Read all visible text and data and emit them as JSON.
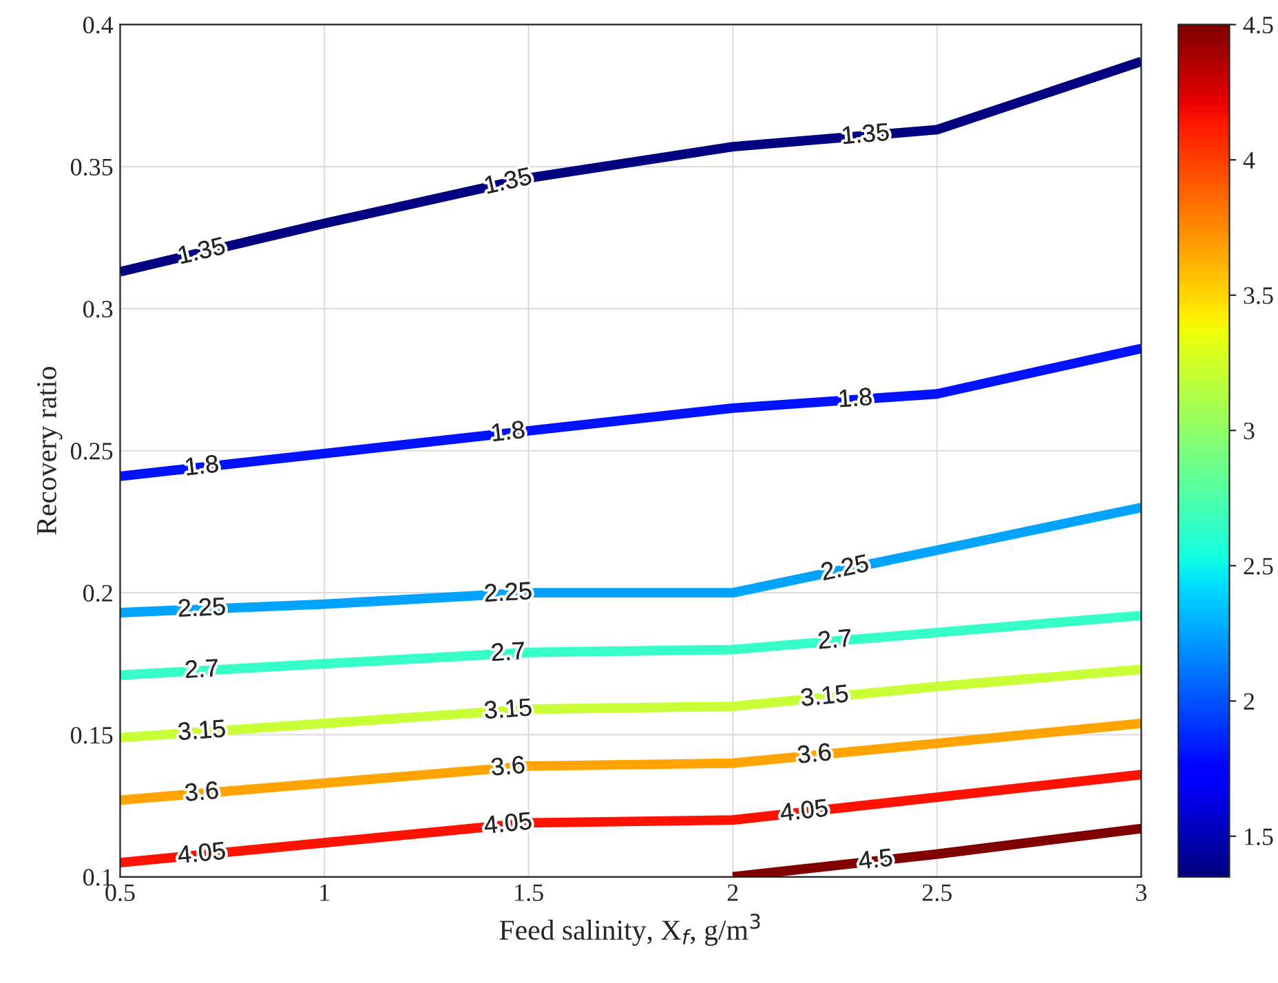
{
  "chart_data": {
    "type": "line",
    "xlabel": "Feed salinity, X$_{f}$, g/m$^{3}$",
    "ylabel": "Recovery ratio",
    "x": [
      0.5,
      1,
      1.5,
      2,
      2.5,
      3
    ],
    "series": [
      {
        "name": "1.35",
        "color": "#000080",
        "values": [
          0.313,
          0.33,
          0.346,
          0.357,
          0.363,
          0.387
        ]
      },
      {
        "name": "1.8",
        "color": "#0012ff",
        "values": [
          0.241,
          0.249,
          0.257,
          0.265,
          0.27,
          0.286
        ]
      },
      {
        "name": "2.25",
        "color": "#00a4ff",
        "values": [
          0.193,
          0.196,
          0.2,
          0.2,
          0.215,
          0.23
        ]
      },
      {
        "name": "2.7",
        "color": "#36ffc8",
        "values": [
          0.171,
          0.175,
          0.179,
          0.18,
          0.186,
          0.192
        ]
      },
      {
        "name": "3.15",
        "color": "#c8ff36",
        "values": [
          0.149,
          0.154,
          0.159,
          0.16,
          0.167,
          0.173
        ]
      },
      {
        "name": "3.6",
        "color": "#ffa400",
        "values": [
          0.127,
          0.133,
          0.139,
          0.14,
          0.147,
          0.154
        ]
      },
      {
        "name": "4.05",
        "color": "#ff1200",
        "values": [
          0.105,
          0.112,
          0.119,
          0.12,
          0.128,
          0.136
        ]
      },
      {
        "name": "4.5",
        "color": "#800000",
        "values": [
          null,
          null,
          null,
          0.1,
          0.108,
          0.117
        ]
      }
    ],
    "xlim": [
      0.5,
      3
    ],
    "xticks": [
      0.5,
      1,
      1.5,
      2,
      2.5,
      3
    ],
    "ylim": [
      0.1,
      0.4
    ],
    "yticks": [
      0.1,
      0.15,
      0.2,
      0.25,
      0.3,
      0.35,
      0.4
    ],
    "clim": [
      1.35,
      4.5
    ],
    "cticks": [
      1.5,
      2,
      2.5,
      3,
      3.5,
      4,
      4.5
    ],
    "grid": true,
    "legend": false
  }
}
